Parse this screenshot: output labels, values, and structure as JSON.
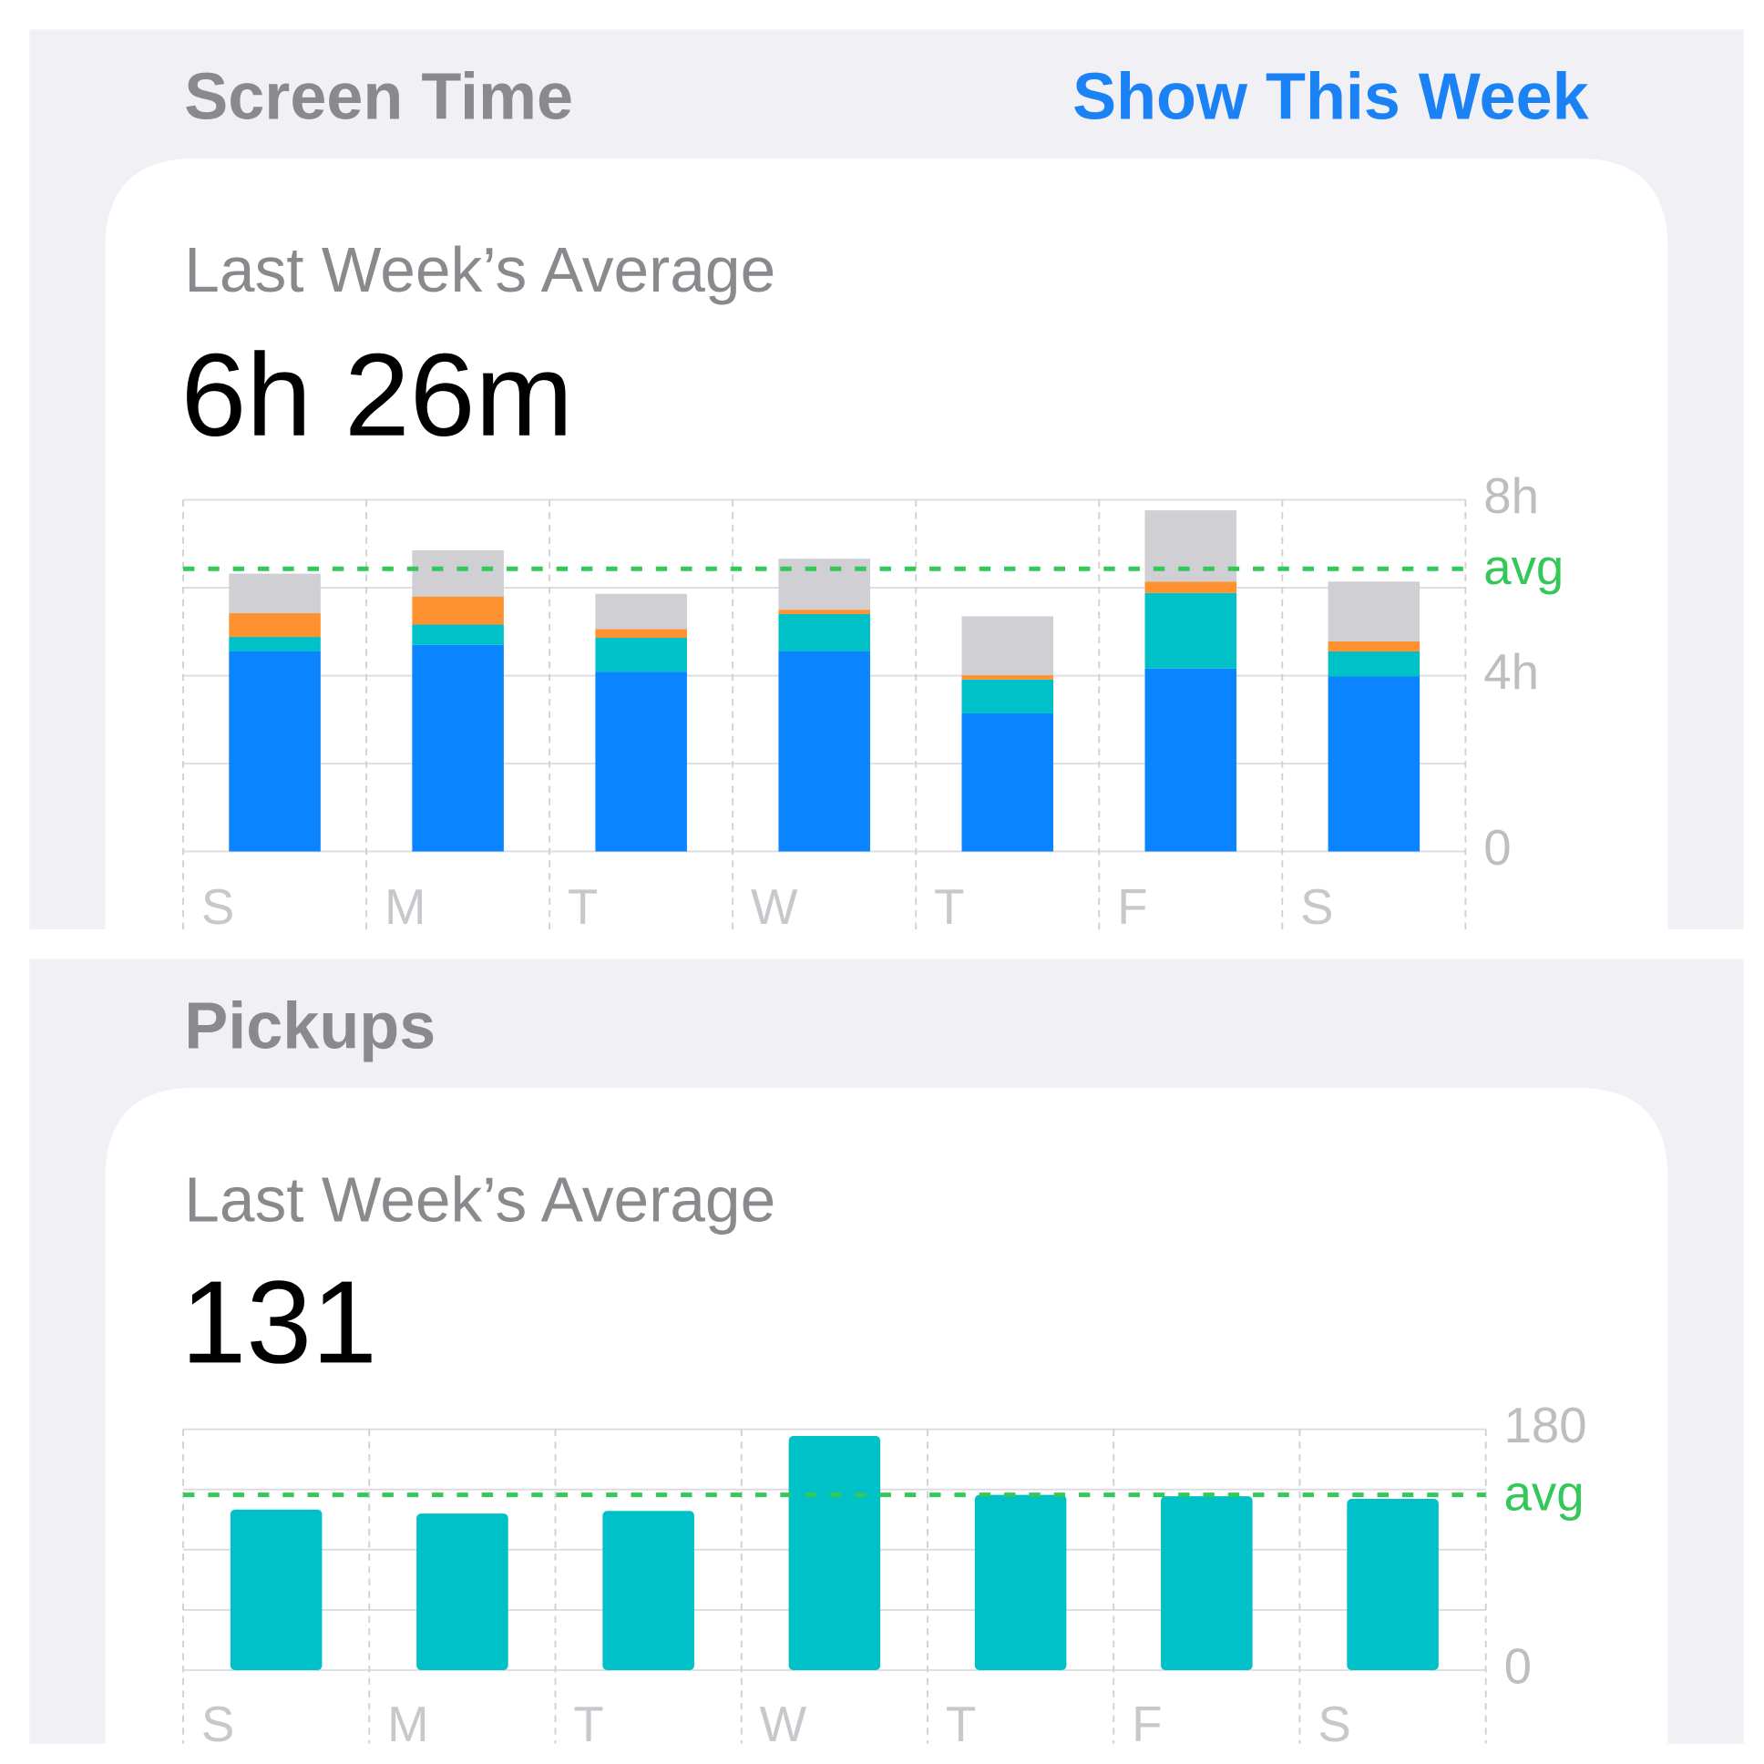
{
  "chart_data": [
    {
      "type": "stacked_bar",
      "header": "Screen Time",
      "action": "Show This Week",
      "subtitle": "Last Week’s Average",
      "summary": "6h 26m",
      "categories": [
        "S",
        "M",
        "T",
        "W",
        "T",
        "F",
        "S"
      ],
      "series": [
        {
          "color": "#0a84ff",
          "values": [
            4.55,
            4.7,
            4.09,
            4.55,
            3.14,
            4.16,
            3.98
          ]
        },
        {
          "color": "#00c0c8",
          "values": [
            0.33,
            0.46,
            0.77,
            0.85,
            0.77,
            1.72,
            0.57
          ]
        },
        {
          "color": "#ff9230",
          "values": [
            0.54,
            0.64,
            0.2,
            0.1,
            0.1,
            0.26,
            0.23
          ]
        },
        {
          "color": "#cfcfd4",
          "values": [
            0.9,
            1.05,
            0.8,
            1.16,
            1.34,
            1.62,
            1.36
          ]
        }
      ],
      "ylim": [
        0,
        8
      ],
      "yticks": [
        0,
        {
          "value": 4,
          "label": "4h"
        },
        {
          "value": 8,
          "label": "8h"
        }
      ],
      "minor_yticks": [
        2,
        6
      ],
      "avg": {
        "value": 6.43,
        "label": "avg",
        "color": "#34c759"
      },
      "grid": true
    },
    {
      "type": "bar",
      "header": "Pickups",
      "subtitle": "Last Week’s Average",
      "summary": "131",
      "categories": [
        "S",
        "M",
        "T",
        "W",
        "T",
        "F",
        "S"
      ],
      "values": [
        120,
        117,
        119,
        175,
        131,
        130,
        128
      ],
      "color": "#00c0c8",
      "ylim": [
        0,
        180
      ],
      "yticks": [
        0,
        180
      ],
      "minor_yticks": [
        45,
        90,
        135
      ],
      "avg": {
        "value": 131,
        "label": "avg",
        "color": "#34c759"
      },
      "grid": true
    }
  ]
}
